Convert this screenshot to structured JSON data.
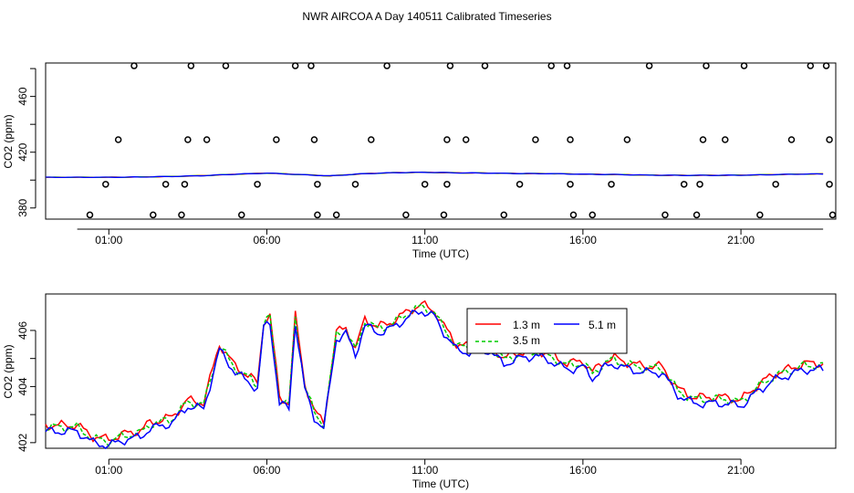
{
  "title": "NWR AIRCOA A  Day 140511  Calibrated Timeseries",
  "chart_data": [
    {
      "type": "scatter",
      "xlabel": "Time (UTC)",
      "ylabel": "CO2 (ppm)",
      "x_ticks": [
        "01:00",
        "06:00",
        "11:00",
        "16:00",
        "21:00"
      ],
      "y_ticks": [
        "380",
        "420",
        "460"
      ],
      "xlim_hours": [
        -1.0,
        24.0
      ],
      "ylim": [
        372,
        484
      ],
      "grid": false,
      "standards": {
        "marker": "open-circle",
        "color": "#000000",
        "points": [
          [
            0.4,
            375
          ],
          [
            0.9,
            397
          ],
          [
            1.3,
            429
          ],
          [
            1.8,
            482
          ],
          [
            2.4,
            375
          ],
          [
            2.8,
            397
          ],
          [
            3.3,
            375
          ],
          [
            3.4,
            397
          ],
          [
            3.5,
            429
          ],
          [
            3.6,
            482
          ],
          [
            4.1,
            429
          ],
          [
            4.7,
            482
          ],
          [
            5.2,
            375
          ],
          [
            5.7,
            397
          ],
          [
            6.3,
            429
          ],
          [
            6.9,
            482
          ],
          [
            7.4,
            482
          ],
          [
            7.5,
            429
          ],
          [
            7.6,
            375
          ],
          [
            7.6,
            397
          ],
          [
            8.2,
            375
          ],
          [
            8.8,
            397
          ],
          [
            9.3,
            429
          ],
          [
            9.8,
            482
          ],
          [
            10.4,
            375
          ],
          [
            11.0,
            397
          ],
          [
            11.6,
            375
          ],
          [
            11.7,
            397
          ],
          [
            11.7,
            429
          ],
          [
            11.8,
            482
          ],
          [
            12.3,
            429
          ],
          [
            12.9,
            482
          ],
          [
            13.5,
            375
          ],
          [
            14.0,
            397
          ],
          [
            14.5,
            429
          ],
          [
            15.0,
            482
          ],
          [
            15.5,
            482
          ],
          [
            15.6,
            429
          ],
          [
            15.6,
            397
          ],
          [
            15.7,
            375
          ],
          [
            16.3,
            375
          ],
          [
            16.9,
            397
          ],
          [
            17.4,
            429
          ],
          [
            18.1,
            482
          ],
          [
            18.6,
            375
          ],
          [
            19.2,
            397
          ],
          [
            19.6,
            375
          ],
          [
            19.7,
            397
          ],
          [
            19.8,
            429
          ],
          [
            19.9,
            482
          ],
          [
            20.5,
            429
          ],
          [
            21.1,
            482
          ],
          [
            21.6,
            375
          ],
          [
            22.1,
            397
          ],
          [
            22.6,
            429
          ],
          [
            23.2,
            482
          ],
          [
            23.7,
            482
          ],
          [
            23.8,
            429
          ],
          [
            23.8,
            397
          ],
          [
            23.9,
            375
          ]
        ]
      },
      "series": [
        {
          "name": "1.3 m",
          "color": "#ff0000"
        },
        {
          "name": "3.5 m",
          "color": "#00cc00"
        },
        {
          "name": "5.1 m",
          "color": "#0000ff"
        }
      ],
      "ambient_hourly": [
        [
          -1.0,
          402.0
        ],
        [
          0.0,
          402.0
        ],
        [
          1.0,
          402.0
        ],
        [
          2.0,
          402.2
        ],
        [
          3.0,
          402.6
        ],
        [
          4.0,
          403.2
        ],
        [
          5.0,
          404.2
        ],
        [
          6.0,
          405.0
        ],
        [
          7.0,
          404.0
        ],
        [
          8.0,
          403.0
        ],
        [
          9.0,
          404.5
        ],
        [
          10.0,
          405.3
        ],
        [
          11.0,
          405.6
        ],
        [
          12.0,
          405.2
        ],
        [
          13.0,
          405.0
        ],
        [
          14.0,
          404.7
        ],
        [
          15.0,
          404.6
        ],
        [
          16.0,
          404.2
        ],
        [
          17.0,
          404.0
        ],
        [
          18.0,
          403.6
        ],
        [
          19.0,
          403.4
        ],
        [
          20.0,
          403.4
        ],
        [
          21.0,
          403.5
        ],
        [
          22.0,
          403.9
        ],
        [
          23.0,
          404.3
        ],
        [
          23.6,
          404.4
        ]
      ]
    },
    {
      "type": "line",
      "xlabel": "Time (UTC)",
      "ylabel": "CO2 (ppm)",
      "x_ticks": [
        "01:00",
        "06:00",
        "11:00",
        "16:00",
        "21:00"
      ],
      "y_ticks": [
        "402",
        "404",
        "406"
      ],
      "xlim_hours": [
        -1.0,
        24.0
      ],
      "ylim": [
        401.8,
        407.3
      ],
      "grid": false,
      "legend": {
        "position": "top-center-right",
        "box": true
      },
      "series": [
        {
          "name": "1.3 m",
          "color": "#ff0000"
        },
        {
          "name": "3.5 m",
          "color": "#00cc00"
        },
        {
          "name": "5.1 m",
          "color": "#0000ff"
        }
      ],
      "base_hourly": [
        [
          -1.0,
          402.5
        ],
        [
          -0.5,
          402.5
        ],
        [
          0.0,
          402.5
        ],
        [
          0.5,
          402.1
        ],
        [
          1.0,
          402.0
        ],
        [
          1.5,
          402.2
        ],
        [
          2.0,
          402.3
        ],
        [
          2.3,
          402.6
        ],
        [
          2.7,
          402.7
        ],
        [
          3.0,
          402.8
        ],
        [
          3.5,
          403.4
        ],
        [
          4.0,
          403.3
        ],
        [
          4.5,
          405.4
        ],
        [
          5.0,
          404.6
        ],
        [
          5.5,
          404.2
        ],
        [
          5.7,
          404.0
        ],
        [
          5.9,
          406.2
        ],
        [
          6.1,
          406.4
        ],
        [
          6.4,
          403.5
        ],
        [
          6.7,
          403.3
        ],
        [
          6.9,
          406.4
        ],
        [
          7.2,
          404.0
        ],
        [
          7.5,
          403.0
        ],
        [
          7.8,
          402.6
        ],
        [
          8.2,
          405.8
        ],
        [
          8.5,
          406.0
        ],
        [
          8.8,
          405.2
        ],
        [
          9.1,
          406.3
        ],
        [
          9.5,
          406.0
        ],
        [
          10.0,
          406.2
        ],
        [
          10.5,
          406.6
        ],
        [
          10.9,
          406.8
        ],
        [
          11.3,
          406.6
        ],
        [
          11.5,
          406.2
        ],
        [
          12.0,
          405.4
        ],
        [
          12.5,
          405.3
        ],
        [
          13.0,
          405.4
        ],
        [
          13.5,
          404.9
        ],
        [
          14.0,
          405.1
        ],
        [
          14.5,
          405.2
        ],
        [
          15.0,
          405.0
        ],
        [
          15.5,
          404.7
        ],
        [
          16.0,
          404.8
        ],
        [
          16.3,
          404.4
        ],
        [
          16.7,
          404.8
        ],
        [
          17.0,
          404.9
        ],
        [
          17.5,
          404.7
        ],
        [
          18.0,
          404.6
        ],
        [
          18.5,
          404.6
        ],
        [
          19.0,
          403.8
        ],
        [
          19.5,
          403.5
        ],
        [
          20.0,
          403.5
        ],
        [
          20.5,
          403.5
        ],
        [
          21.0,
          403.4
        ],
        [
          21.5,
          403.9
        ],
        [
          22.0,
          404.3
        ],
        [
          22.5,
          404.5
        ],
        [
          23.0,
          404.7
        ],
        [
          23.4,
          404.7
        ],
        [
          23.6,
          404.7
        ]
      ]
    }
  ]
}
